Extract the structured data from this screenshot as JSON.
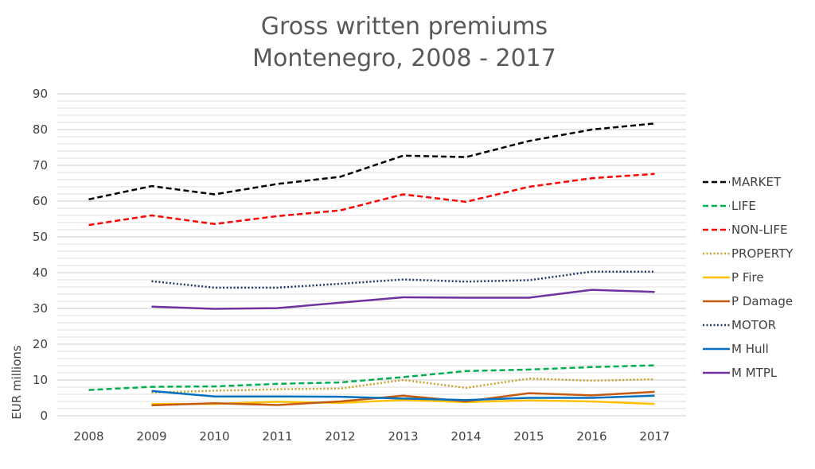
{
  "chart_data": {
    "type": "line",
    "title_line1": "Gross written premiums",
    "title_line2": "Montenegro, 2008 - 2017",
    "xlabel": "",
    "ylabel": "EUR millions",
    "ylim": [
      0,
      90
    ],
    "y_ticks": [
      "0",
      "10",
      "20",
      "30",
      "40",
      "50",
      "60",
      "70",
      "80",
      "90"
    ],
    "categories": [
      "2008",
      "2009",
      "2010",
      "2011",
      "2012",
      "2013",
      "2014",
      "2015",
      "2016",
      "2017"
    ],
    "grid": true,
    "legend_position": "right",
    "series": [
      {
        "name": "MARKET",
        "color": "#000000",
        "dash": "dashed",
        "values": [
          60.5,
          64.2,
          61.9,
          64.8,
          66.8,
          72.7,
          72.3,
          76.8,
          80.0,
          81.7
        ]
      },
      {
        "name": "LIFE",
        "color": "#00B050",
        "dash": "dashed",
        "values": [
          7.2,
          8.1,
          8.2,
          8.9,
          9.3,
          10.8,
          12.5,
          12.9,
          13.6,
          14.1
        ]
      },
      {
        "name": "NON-LIFE",
        "color": "#FF0000",
        "dash": "dashed",
        "values": [
          53.3,
          56.0,
          53.6,
          55.8,
          57.4,
          61.9,
          59.8,
          64.0,
          66.4,
          67.6
        ]
      },
      {
        "name": "PROPERTY",
        "color": "#C9A227",
        "dash": "dotted",
        "values": [
          null,
          6.5,
          7.0,
          7.4,
          7.6,
          10.0,
          7.8,
          10.4,
          9.8,
          10.2
        ]
      },
      {
        "name": "P Fire",
        "color": "#FFC000",
        "dash": "solid",
        "values": [
          null,
          3.3,
          3.3,
          3.9,
          3.6,
          4.4,
          3.8,
          4.3,
          4.0,
          3.3
        ]
      },
      {
        "name": "P Damage",
        "color": "#C55A11",
        "dash": "solid",
        "values": [
          null,
          2.9,
          3.5,
          3.0,
          4.0,
          5.6,
          4.0,
          6.3,
          5.7,
          6.7
        ]
      },
      {
        "name": "MOTOR",
        "color": "#1F3864",
        "dash": "dotted",
        "values": [
          null,
          37.6,
          35.8,
          35.8,
          36.9,
          38.1,
          37.5,
          37.9,
          40.3,
          40.3
        ]
      },
      {
        "name": "M Hull",
        "color": "#0070C0",
        "dash": "solid",
        "values": [
          null,
          6.9,
          5.4,
          5.4,
          5.3,
          4.8,
          4.4,
          5.0,
          5.0,
          5.6
        ]
      },
      {
        "name": "M MTPL",
        "color": "#7030A0",
        "dash": "solid",
        "values": [
          null,
          30.5,
          29.9,
          30.1,
          31.6,
          33.1,
          33.0,
          33.0,
          35.2,
          34.6
        ]
      }
    ]
  }
}
